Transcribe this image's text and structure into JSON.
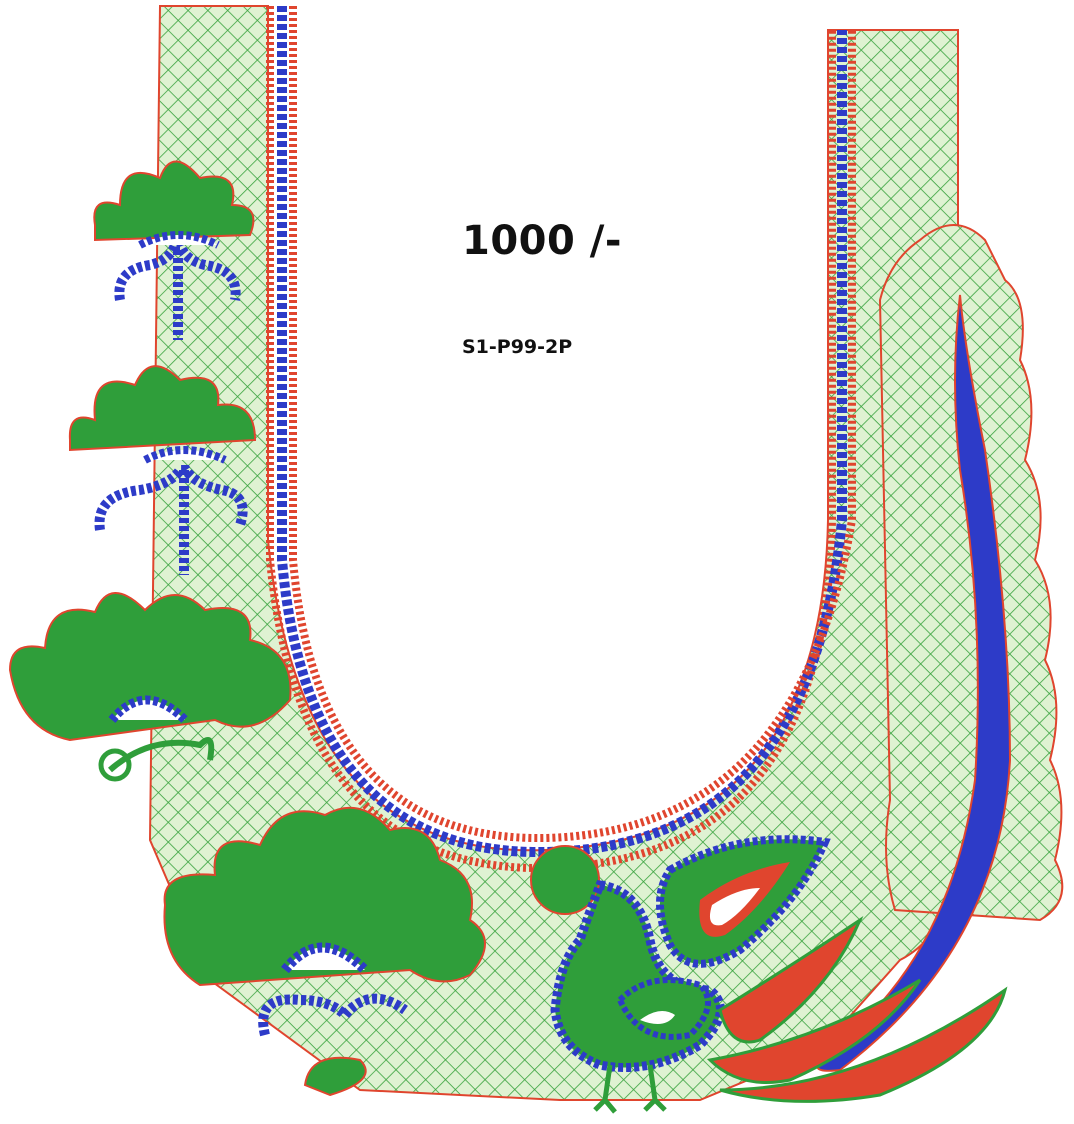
{
  "design": {
    "price_label": "1000 /-",
    "code_label": "S1-P99-2P",
    "motifs": [
      "neckline-border",
      "flower-motif",
      "peacock-motif",
      "paisley-panel"
    ]
  },
  "colors": {
    "green": "#2f9e3a",
    "light_green": "#dff2d2",
    "mesh": "#3aa33f",
    "blue": "#2d3bc8",
    "red": "#e0452e",
    "background": "#ffffff"
  }
}
